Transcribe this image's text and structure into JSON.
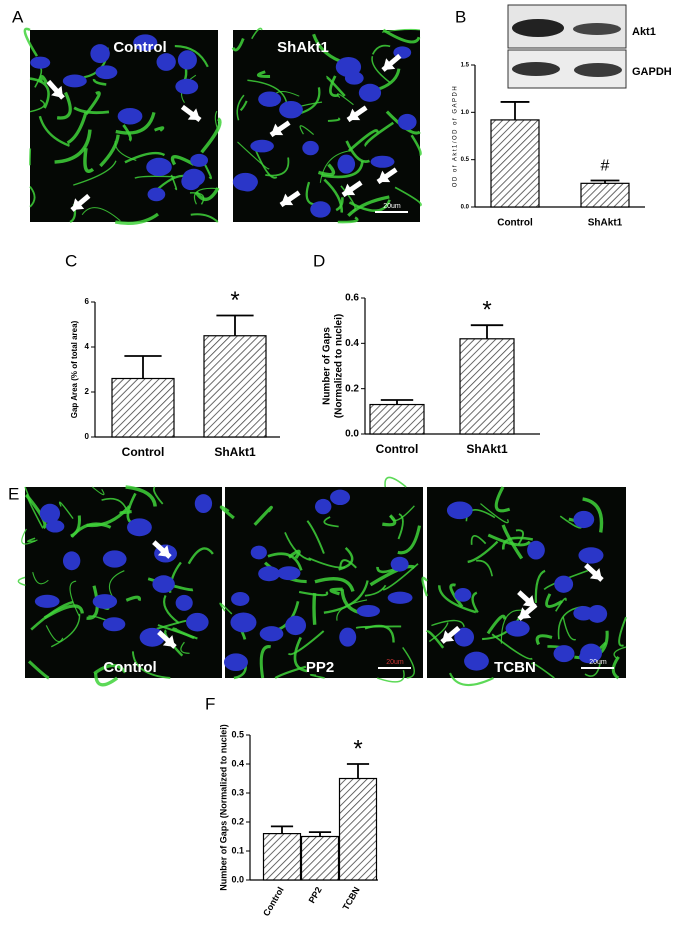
{
  "panels": {
    "letters": [
      "A",
      "B",
      "C",
      "D",
      "E",
      "F"
    ],
    "a_images": [
      {
        "label": "Control"
      },
      {
        "label": "ShAkt1",
        "scale_bar": "20um"
      }
    ],
    "blot": {
      "bands": [
        "Akt1",
        "GAPDH"
      ]
    },
    "e_images": [
      {
        "label": "Control"
      },
      {
        "label": "PP2",
        "scale_bar": "20um"
      },
      {
        "label": "TCBN",
        "scale_bar": "20um"
      }
    ]
  },
  "chart_data": [
    {
      "type": "bar",
      "ylabel": [
        "OD of Akt1/OD of GAPDH"
      ],
      "categories": [
        "Control",
        "ShAkt1"
      ],
      "values": [
        0.92,
        0.25
      ],
      "errors": [
        0.19,
        0.03
      ],
      "color": "#444444",
      "ylim": [
        0,
        1.5
      ],
      "yticks": [
        {
          "value": 0,
          "label": "0.0"
        },
        0.5,
        {
          "value": 1,
          "label": "1.0"
        },
        1.5
      ],
      "annotations": [
        {
          "text": "#",
          "x": "ShAkt1"
        }
      ]
    },
    {
      "type": "bar",
      "ylabel": [
        "Gap Area (% of total area)"
      ],
      "categories": [
        "Control",
        "ShAkt1"
      ],
      "values": [
        2.6,
        4.5
      ],
      "errors": [
        1.0,
        0.9
      ],
      "color": "#444444",
      "ylim": [
        0,
        6
      ],
      "yticks": [
        0,
        2,
        4,
        6
      ],
      "annotations": [
        {
          "text": "*",
          "x": "ShAkt1"
        }
      ]
    },
    {
      "type": "bar",
      "ylabel": [
        "Number of Gaps",
        "(Normalized to nuclei)"
      ],
      "categories": [
        "Control",
        "ShAkt1"
      ],
      "values": [
        0.13,
        0.42
      ],
      "errors": [
        0.02,
        0.06
      ],
      "color": "#444444",
      "ylim": [
        0,
        0.6
      ],
      "yticks": [
        {
          "value": 0,
          "label": "0.0"
        },
        0.2,
        0.4,
        0.6
      ],
      "annotations": [
        {
          "text": "*",
          "x": "ShAkt1"
        }
      ]
    },
    {
      "type": "bar",
      "ylabel": [
        "Number of Gaps (Normalized to nuclei)"
      ],
      "categories": [
        "Control",
        "PP2",
        "TCBN"
      ],
      "values": [
        0.16,
        0.15,
        0.35
      ],
      "errors": [
        0.025,
        0.015,
        0.05
      ],
      "color": "#444444",
      "ylim": [
        0,
        0.5
      ],
      "yticks": [
        {
          "value": 0,
          "label": "0.0"
        },
        0.1,
        0.2,
        0.3,
        0.4,
        0.5
      ],
      "xtick_rotation": 60,
      "annotations": [
        {
          "text": "*",
          "x": "TCBN"
        }
      ]
    }
  ]
}
